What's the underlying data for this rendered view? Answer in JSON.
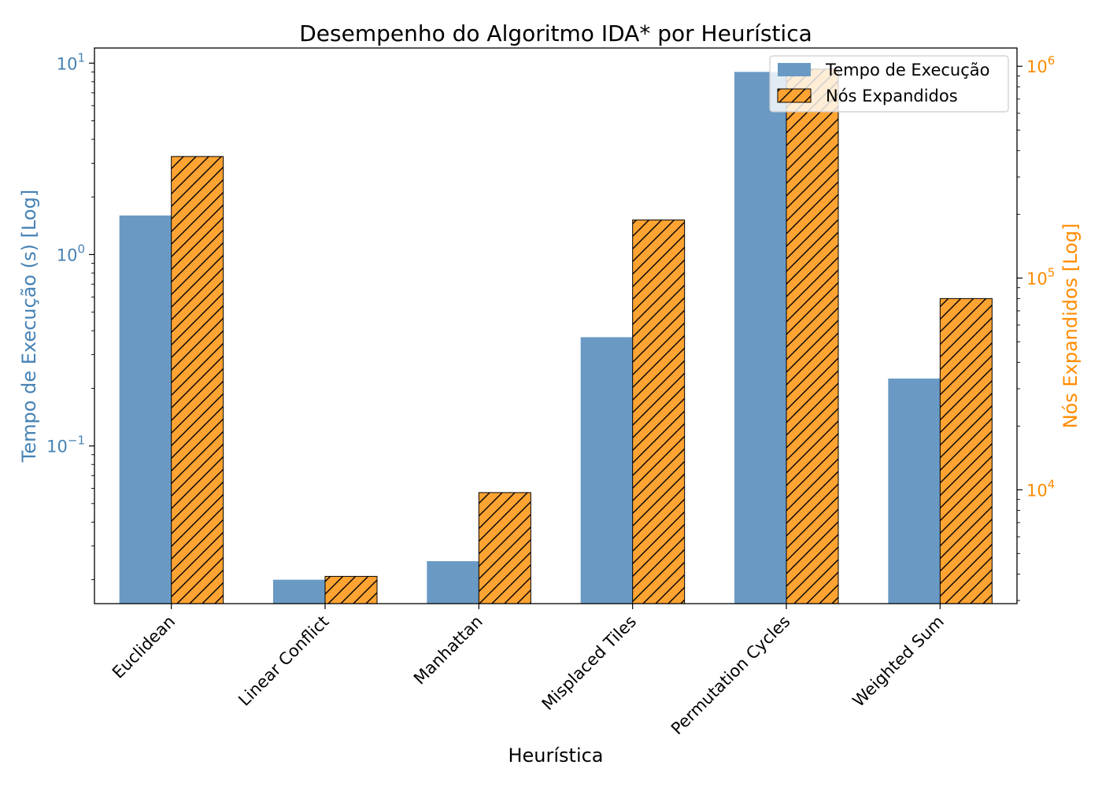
{
  "chart_data": {
    "type": "bar",
    "title": "Desempenho do Algoritmo IDA* por Heurística",
    "xlabel": "Heurística",
    "categories": [
      "Euclidean",
      "Linear Conflict",
      "Manhattan",
      "Misplaced Tiles",
      "Permutation Cycles",
      "Weighted Sum"
    ],
    "y_left": {
      "label": "Tempo de Execução (s) [Log]",
      "scale": "log",
      "range": [
        0.015,
        12
      ],
      "ticks": [
        {
          "value": 0.1,
          "mantissa": "10",
          "exp": "−1"
        },
        {
          "value": 1,
          "mantissa": "10",
          "exp": "0"
        },
        {
          "value": 10,
          "mantissa": "10",
          "exp": "1"
        }
      ],
      "color": "#4682b4"
    },
    "y_right": {
      "label": "Nós Expandidos [Log]",
      "scale": "log",
      "range": [
        2900,
        1220000
      ],
      "ticks": [
        {
          "value": 10000,
          "mantissa": "10",
          "exp": "4"
        },
        {
          "value": 100000,
          "mantissa": "10",
          "exp": "5"
        },
        {
          "value": 1000000,
          "mantissa": "10",
          "exp": "6"
        }
      ],
      "color": "#ff8c00"
    },
    "series": [
      {
        "name": "Tempo de Execução",
        "axis": "left",
        "color": "#6a9ac4",
        "hatch": false,
        "values": [
          1.6,
          0.02,
          0.025,
          0.37,
          9.0,
          0.225
        ]
      },
      {
        "name": "Nós Expandidos",
        "axis": "right",
        "color": "#ffa333",
        "hatch": true,
        "values": [
          375000,
          3900,
          9700,
          188000,
          970000,
          80000
        ]
      }
    ],
    "legend": "top-right",
    "grid": false
  }
}
